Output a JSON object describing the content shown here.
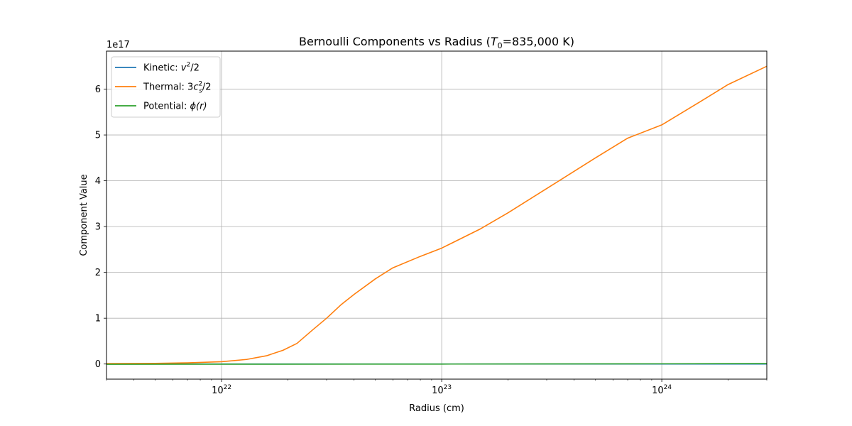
{
  "chart_data": {
    "type": "line",
    "title": "Bernoulli Components vs Radius (T₀=835,000 K)",
    "title_main": "Bernoulli Components vs Radius (",
    "title_var": "T",
    "title_sub": "0",
    "title_rest": "=835,000 K)",
    "xlabel": "Radius (cm)",
    "ylabel": "Component Value",
    "y_offset_label": "1e17",
    "x_scale": "log",
    "xlim": [
      3e+21,
      3e+24
    ],
    "ylim": [
      -0.33,
      6.83
    ],
    "y_unit_multiplier": 1e+17,
    "x_ticks": [
      {
        "value": 1e+22,
        "base": "10",
        "exp": "22"
      },
      {
        "value": 1e+23,
        "base": "10",
        "exp": "23"
      },
      {
        "value": 1e+24,
        "base": "10",
        "exp": "24"
      }
    ],
    "y_ticks": [
      0,
      1,
      2,
      3,
      4,
      5,
      6
    ],
    "grid": true,
    "legend_position": "top-left",
    "legend": [
      {
        "label": "Kinetic: v²/2",
        "text": "Kinetic: ",
        "math": "v",
        "sup": "2",
        "tail": "/2",
        "color": "#1f77b4"
      },
      {
        "label": "Thermal: 3cₛ²/2",
        "text": "Thermal: 3",
        "math": "c",
        "sub": "s",
        "sup": "2",
        "tail": "/2",
        "color": "#ff7f0e"
      },
      {
        "label": "Potential: ϕ(r)",
        "text": "Potential: ",
        "math": "ϕ(r)",
        "color": "#2ca02c"
      }
    ],
    "series": [
      {
        "name": "Kinetic: v²/2",
        "color": "#1f77b4",
        "x": [
          3e+21,
          3e+24
        ],
        "y": [
          0.0,
          0.0
        ]
      },
      {
        "name": "Thermal: 3cₛ²/2",
        "color": "#ff7f0e",
        "x": [
          3e+21,
          5e+21,
          7e+21,
          1e+22,
          1.3e+22,
          1.6e+22,
          1.9e+22,
          2.2e+22,
          2.6e+22,
          3e+22,
          3.5e+22,
          4e+22,
          5e+22,
          6e+22,
          8e+22,
          1e+23,
          1.5e+23,
          2e+23,
          3e+23,
          5e+23,
          7e+23,
          1e+24,
          1.5e+24,
          2e+24,
          3e+24
        ],
        "y": [
          0.01,
          0.015,
          0.025,
          0.05,
          0.1,
          0.18,
          0.3,
          0.45,
          0.75,
          1.0,
          1.3,
          1.52,
          1.86,
          2.1,
          2.35,
          2.53,
          2.95,
          3.3,
          3.83,
          4.5,
          4.93,
          5.22,
          5.73,
          6.1,
          6.5
        ]
      },
      {
        "name": "Potential: ϕ(r)",
        "color": "#2ca02c",
        "x": [
          3e+21,
          1e+22,
          1e+23,
          1e+24,
          3e+24
        ],
        "y": [
          -0.005,
          -0.004,
          -0.001,
          0.005,
          0.01
        ]
      }
    ]
  }
}
